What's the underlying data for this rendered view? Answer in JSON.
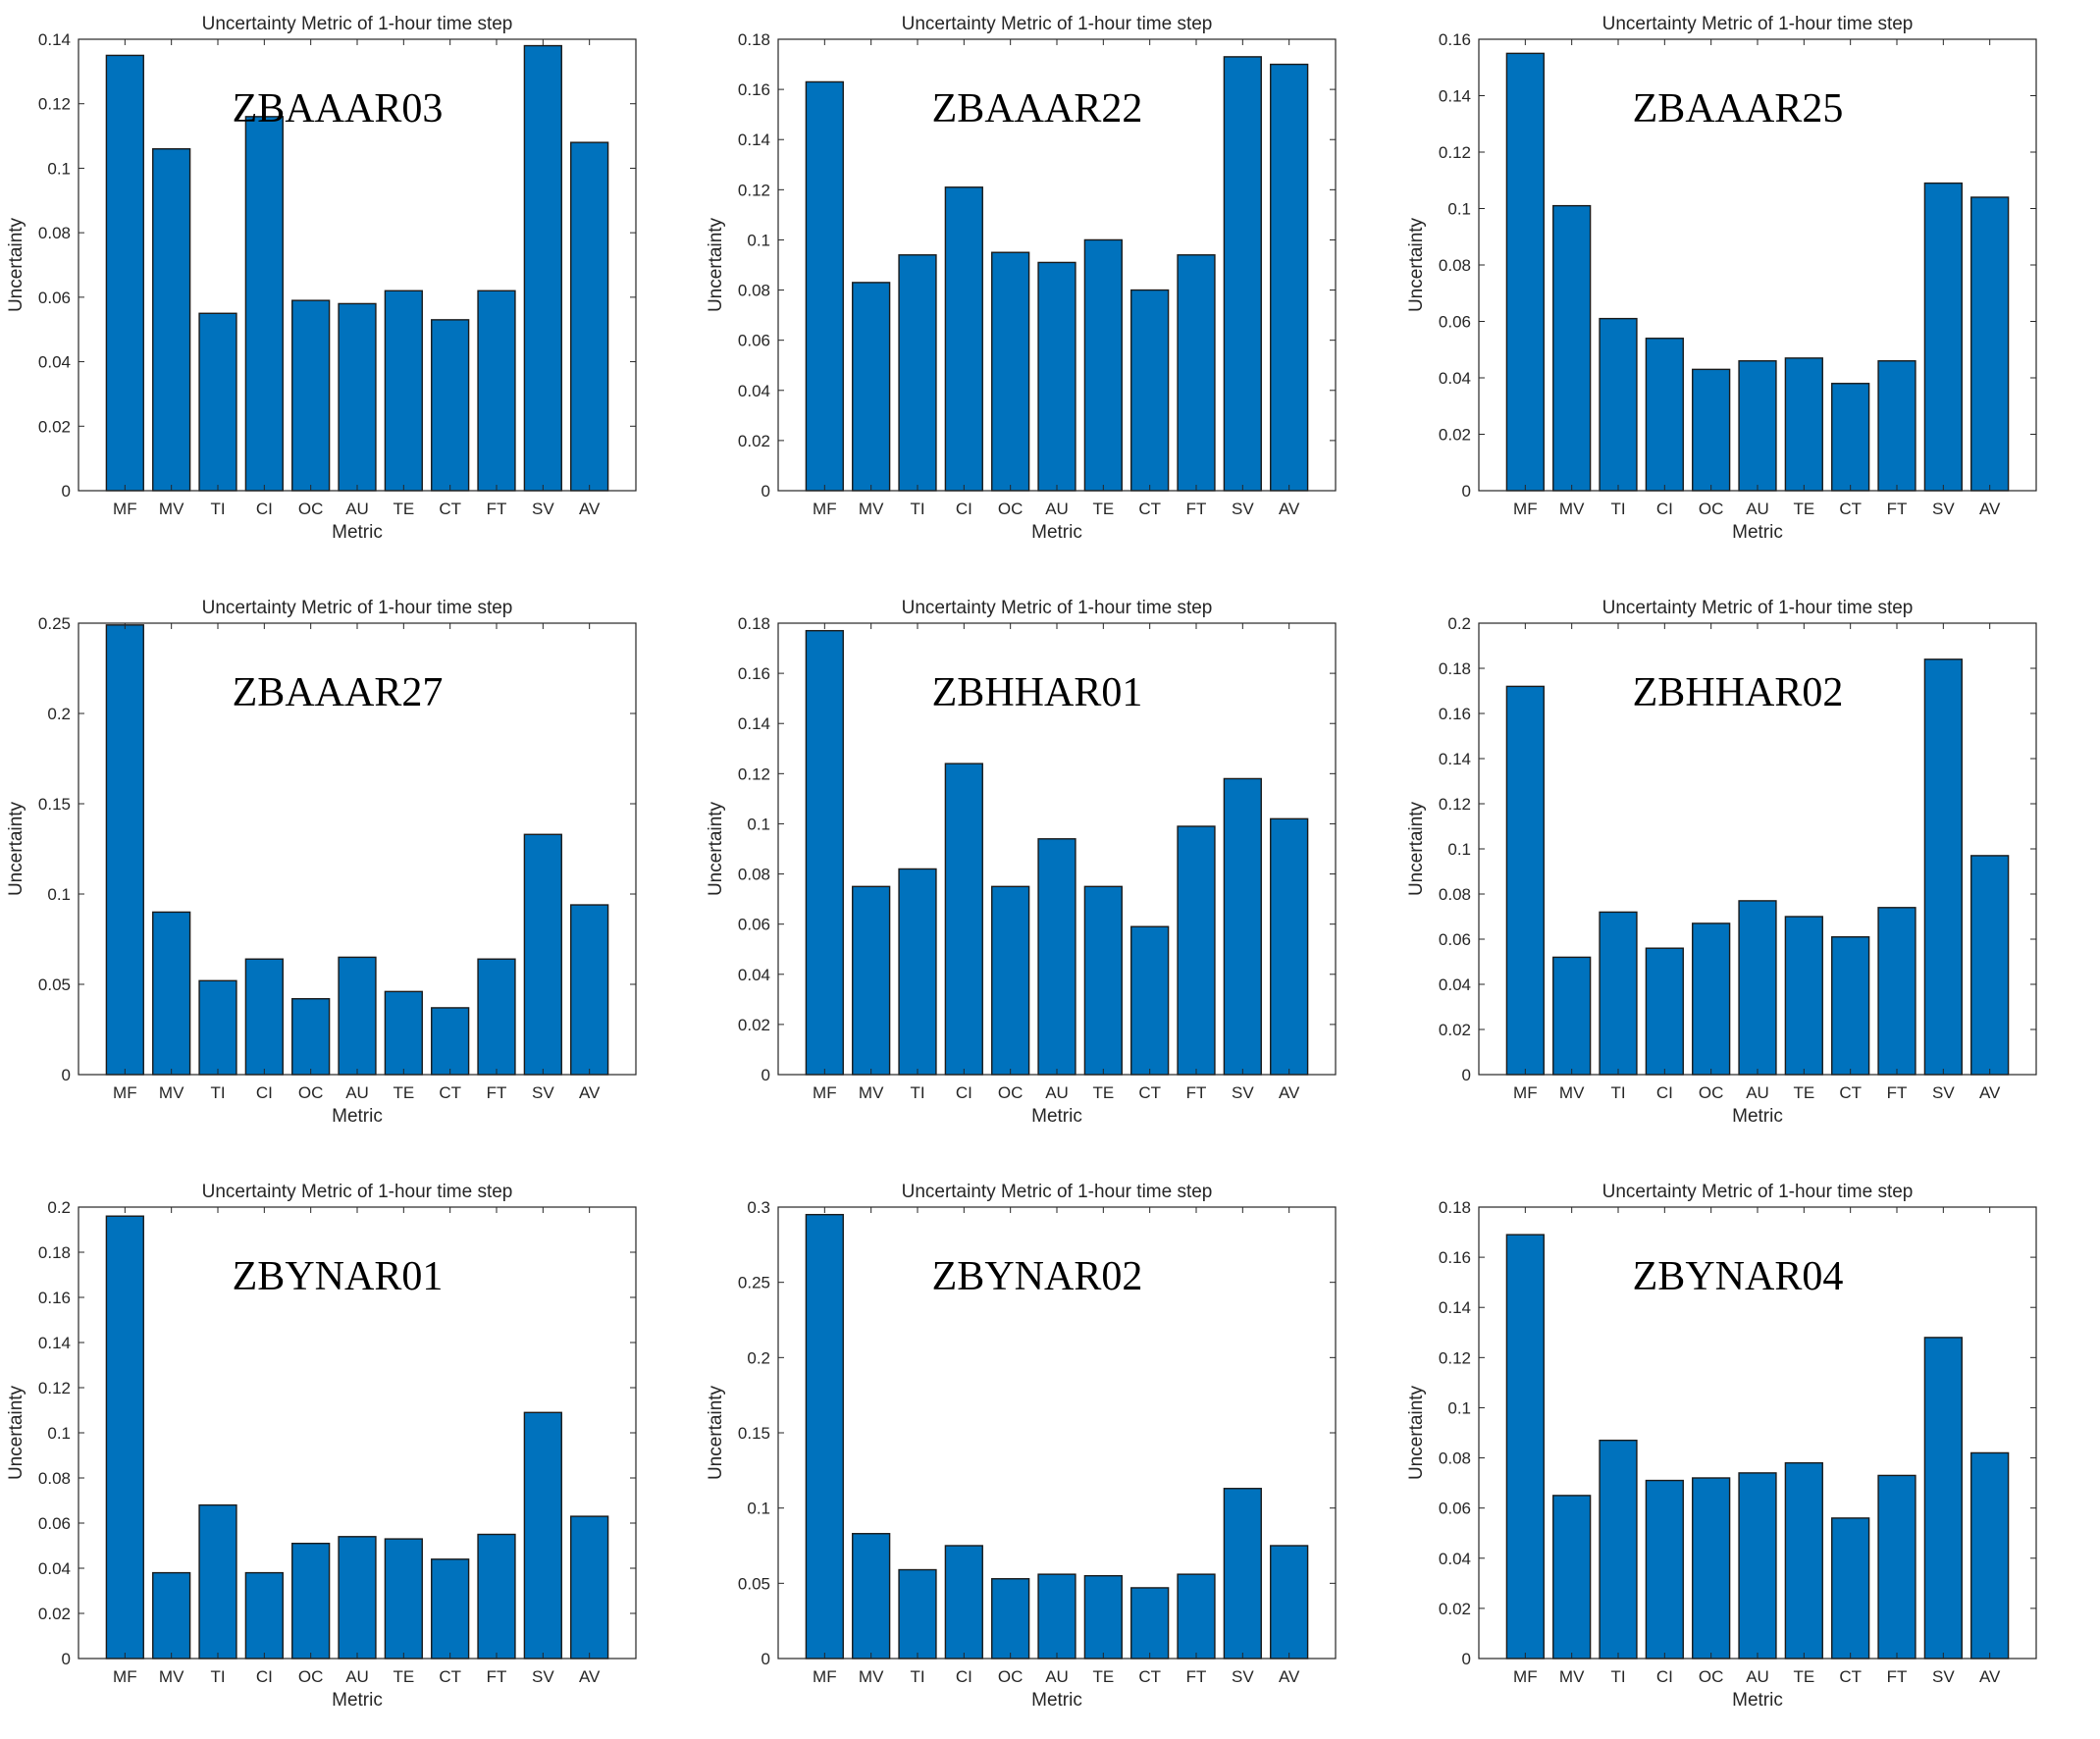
{
  "colors": {
    "bar": "#0072BD"
  },
  "chart_data": [
    {
      "type": "bar",
      "station": "ZBAAAR03",
      "title": "Uncertainty Metric of 1-hour time step",
      "xlabel": "Metric",
      "ylabel": "Uncertainty",
      "categories": [
        "MF",
        "MV",
        "TI",
        "CI",
        "OC",
        "AU",
        "TE",
        "CT",
        "FT",
        "SV",
        "AV"
      ],
      "values": [
        0.135,
        0.106,
        0.055,
        0.116,
        0.059,
        0.058,
        0.062,
        0.053,
        0.062,
        0.138,
        0.108
      ],
      "ylim": [
        0,
        0.14
      ],
      "yticks": [
        0,
        0.02,
        0.04,
        0.06,
        0.08,
        0.1,
        0.12,
        0.14
      ],
      "ytick_labels": [
        "0",
        "0.02",
        "0.04",
        "0.06",
        "0.08",
        "0.1",
        "0.12",
        "0.14"
      ]
    },
    {
      "type": "bar",
      "station": "ZBAAAR22",
      "title": "Uncertainty Metric of 1-hour time step",
      "xlabel": "Metric",
      "ylabel": "Uncertainty",
      "categories": [
        "MF",
        "MV",
        "TI",
        "CI",
        "OC",
        "AU",
        "TE",
        "CT",
        "FT",
        "SV",
        "AV"
      ],
      "values": [
        0.163,
        0.083,
        0.094,
        0.121,
        0.095,
        0.091,
        0.1,
        0.08,
        0.094,
        0.173,
        0.17
      ],
      "ylim": [
        0,
        0.18
      ],
      "yticks": [
        0,
        0.02,
        0.04,
        0.06,
        0.08,
        0.1,
        0.12,
        0.14,
        0.16,
        0.18
      ],
      "ytick_labels": [
        "0",
        "0.02",
        "0.04",
        "0.06",
        "0.08",
        "0.1",
        "0.12",
        "0.14",
        "0.16",
        "0.18"
      ]
    },
    {
      "type": "bar",
      "station": "ZBAAAR25",
      "title": "Uncertainty Metric of 1-hour time step",
      "xlabel": "Metric",
      "ylabel": "Uncertainty",
      "categories": [
        "MF",
        "MV",
        "TI",
        "CI",
        "OC",
        "AU",
        "TE",
        "CT",
        "FT",
        "SV",
        "AV"
      ],
      "values": [
        0.155,
        0.101,
        0.061,
        0.054,
        0.043,
        0.046,
        0.047,
        0.038,
        0.046,
        0.109,
        0.104
      ],
      "ylim": [
        0,
        0.16
      ],
      "yticks": [
        0,
        0.02,
        0.04,
        0.06,
        0.08,
        0.1,
        0.12,
        0.14,
        0.16
      ],
      "ytick_labels": [
        "0",
        "0.02",
        "0.04",
        "0.06",
        "0.08",
        "0.1",
        "0.12",
        "0.14",
        "0.16"
      ]
    },
    {
      "type": "bar",
      "station": "ZBAAAR27",
      "title": "Uncertainty Metric of 1-hour time step",
      "xlabel": "Metric",
      "ylabel": "Uncertainty",
      "categories": [
        "MF",
        "MV",
        "TI",
        "CI",
        "OC",
        "AU",
        "TE",
        "CT",
        "FT",
        "SV",
        "AV"
      ],
      "values": [
        0.249,
        0.09,
        0.052,
        0.064,
        0.042,
        0.065,
        0.046,
        0.037,
        0.064,
        0.133,
        0.094
      ],
      "ylim": [
        0,
        0.25
      ],
      "yticks": [
        0,
        0.05,
        0.1,
        0.15,
        0.2,
        0.25
      ],
      "ytick_labels": [
        "0",
        "0.05",
        "0.1",
        "0.15",
        "0.2",
        "0.25"
      ]
    },
    {
      "type": "bar",
      "station": "ZBHHAR01",
      "title": "Uncertainty Metric of 1-hour time step",
      "xlabel": "Metric",
      "ylabel": "Uncertainty",
      "categories": [
        "MF",
        "MV",
        "TI",
        "CI",
        "OC",
        "AU",
        "TE",
        "CT",
        "FT",
        "SV",
        "AV"
      ],
      "values": [
        0.177,
        0.075,
        0.082,
        0.124,
        0.075,
        0.094,
        0.075,
        0.059,
        0.099,
        0.118,
        0.102
      ],
      "ylim": [
        0,
        0.18
      ],
      "yticks": [
        0,
        0.02,
        0.04,
        0.06,
        0.08,
        0.1,
        0.12,
        0.14,
        0.16,
        0.18
      ],
      "ytick_labels": [
        "0",
        "0.02",
        "0.04",
        "0.06",
        "0.08",
        "0.1",
        "0.12",
        "0.14",
        "0.16",
        "0.18"
      ]
    },
    {
      "type": "bar",
      "station": "ZBHHAR02",
      "title": "Uncertainty Metric of 1-hour time step",
      "xlabel": "Metric",
      "ylabel": "Uncertainty",
      "categories": [
        "MF",
        "MV",
        "TI",
        "CI",
        "OC",
        "AU",
        "TE",
        "CT",
        "FT",
        "SV",
        "AV"
      ],
      "values": [
        0.172,
        0.052,
        0.072,
        0.056,
        0.067,
        0.077,
        0.07,
        0.061,
        0.074,
        0.184,
        0.097
      ],
      "ylim": [
        0,
        0.2
      ],
      "yticks": [
        0,
        0.02,
        0.04,
        0.06,
        0.08,
        0.1,
        0.12,
        0.14,
        0.16,
        0.18,
        0.2
      ],
      "ytick_labels": [
        "0",
        "0.02",
        "0.04",
        "0.06",
        "0.08",
        "0.1",
        "0.12",
        "0.14",
        "0.16",
        "0.18",
        "0.2"
      ]
    },
    {
      "type": "bar",
      "station": "ZBYNAR01",
      "title": "Uncertainty Metric of 1-hour time step",
      "xlabel": "Metric",
      "ylabel": "Uncertainty",
      "categories": [
        "MF",
        "MV",
        "TI",
        "CI",
        "OC",
        "AU",
        "TE",
        "CT",
        "FT",
        "SV",
        "AV"
      ],
      "values": [
        0.196,
        0.038,
        0.068,
        0.038,
        0.051,
        0.054,
        0.053,
        0.044,
        0.055,
        0.109,
        0.063
      ],
      "ylim": [
        0,
        0.2
      ],
      "yticks": [
        0,
        0.02,
        0.04,
        0.06,
        0.08,
        0.1,
        0.12,
        0.14,
        0.16,
        0.18,
        0.2
      ],
      "ytick_labels": [
        "0",
        "0.02",
        "0.04",
        "0.06",
        "0.08",
        "0.1",
        "0.12",
        "0.14",
        "0.16",
        "0.18",
        "0.2"
      ]
    },
    {
      "type": "bar",
      "station": "ZBYNAR02",
      "title": "Uncertainty Metric of 1-hour time step",
      "xlabel": "Metric",
      "ylabel": "Uncertainty",
      "categories": [
        "MF",
        "MV",
        "TI",
        "CI",
        "OC",
        "AU",
        "TE",
        "CT",
        "FT",
        "SV",
        "AV"
      ],
      "values": [
        0.295,
        0.083,
        0.059,
        0.075,
        0.053,
        0.056,
        0.055,
        0.047,
        0.056,
        0.113,
        0.075
      ],
      "ylim": [
        0,
        0.3
      ],
      "yticks": [
        0,
        0.05,
        0.1,
        0.15,
        0.2,
        0.25,
        0.3
      ],
      "ytick_labels": [
        "0",
        "0.05",
        "0.1",
        "0.15",
        "0.2",
        "0.25",
        "0.3"
      ]
    },
    {
      "type": "bar",
      "station": "ZBYNAR04",
      "title": "Uncertainty Metric of 1-hour time step",
      "xlabel": "Metric",
      "ylabel": "Uncertainty",
      "categories": [
        "MF",
        "MV",
        "TI",
        "CI",
        "OC",
        "AU",
        "TE",
        "CT",
        "FT",
        "SV",
        "AV"
      ],
      "values": [
        0.169,
        0.065,
        0.087,
        0.071,
        0.072,
        0.074,
        0.078,
        0.056,
        0.073,
        0.128,
        0.082
      ],
      "ylim": [
        0,
        0.18
      ],
      "yticks": [
        0,
        0.02,
        0.04,
        0.06,
        0.08,
        0.1,
        0.12,
        0.14,
        0.16,
        0.18
      ],
      "ytick_labels": [
        "0",
        "0.02",
        "0.04",
        "0.06",
        "0.08",
        "0.1",
        "0.12",
        "0.14",
        "0.16",
        "0.18"
      ]
    }
  ]
}
